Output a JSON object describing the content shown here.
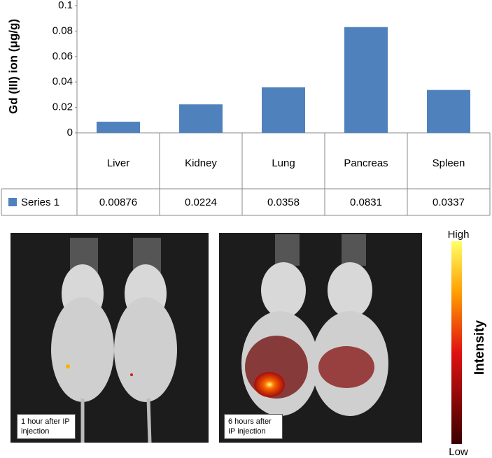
{
  "chart_data": {
    "type": "bar",
    "y_label": "Gd (III) ion (μg/g)",
    "categories": [
      "Liver",
      "Kidney",
      "Lung",
      "Pancreas",
      "Spleen"
    ],
    "series": [
      {
        "name": "Series 1",
        "color": "#4f81bd",
        "values": [
          0.00876,
          0.0224,
          0.0358,
          0.0831,
          0.0337
        ]
      }
    ],
    "ylim": [
      0,
      0.1
    ],
    "yticks": [
      0,
      0.02,
      0.04,
      0.06,
      0.08,
      0.1
    ],
    "data_table": true
  },
  "panels": [
    {
      "caption": "1 hour after IP injection"
    },
    {
      "caption": "6 hours after IP injection"
    }
  ],
  "colorbar": {
    "high": "High",
    "low": "Low",
    "label": "Intensity"
  }
}
